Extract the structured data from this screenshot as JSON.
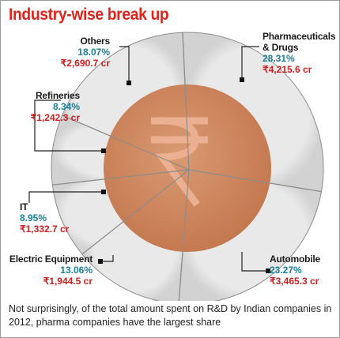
{
  "title": "Industry-wise break up",
  "footnote": "Not surprisingly, of the total amount spent on R&D by Indian companies in 2012, pharma companies have the largest share",
  "colors": {
    "title": "#e2231a",
    "percent": "#1a7f9a",
    "value": "#cc1f1f",
    "outer_ring": "#dcdcdc",
    "inner_disc": "#d08860",
    "symbol": "#e8a987"
  },
  "center_icon": "rupee-symbol",
  "chart_data": {
    "type": "pie",
    "title": "Industry-wise break up",
    "slices": [
      {
        "name": "Pharmaceuticals & Drugs",
        "name_lines": [
          "Pharmaceuticals",
          "& Drugs"
        ],
        "percent": 28.31,
        "percent_label": "28.31%",
        "value_label": "₹4,215.6 cr",
        "value": 4215.6,
        "unit": "cr"
      },
      {
        "name": "Automobile",
        "name_lines": [
          "Automobile"
        ],
        "percent": 23.27,
        "percent_label": "23.27%",
        "value_label": "₹3,465.3 cr",
        "value": 3465.3,
        "unit": "cr"
      },
      {
        "name": "Electric Equipment",
        "name_lines": [
          "Electric Equipment"
        ],
        "percent": 13.06,
        "percent_label": "13.06%",
        "value_label": "₹1,944.5 cr",
        "value": 1944.5,
        "unit": "cr"
      },
      {
        "name": "IT",
        "name_lines": [
          "IT"
        ],
        "percent": 8.95,
        "percent_label": "8.95%",
        "value_label": "₹1,332.7 cr",
        "value": 1332.7,
        "unit": "cr"
      },
      {
        "name": "Refineries",
        "name_lines": [
          "Refineries"
        ],
        "percent": 8.34,
        "percent_label": "8.34%",
        "value_label": "₹1,242.3 cr",
        "value": 1242.3,
        "unit": "cr"
      },
      {
        "name": "Others",
        "name_lines": [
          "Others"
        ],
        "percent": 18.07,
        "percent_label": "18.07%",
        "value_label": "₹2,690.7 cr",
        "value": 2690.7,
        "unit": "cr"
      }
    ]
  }
}
